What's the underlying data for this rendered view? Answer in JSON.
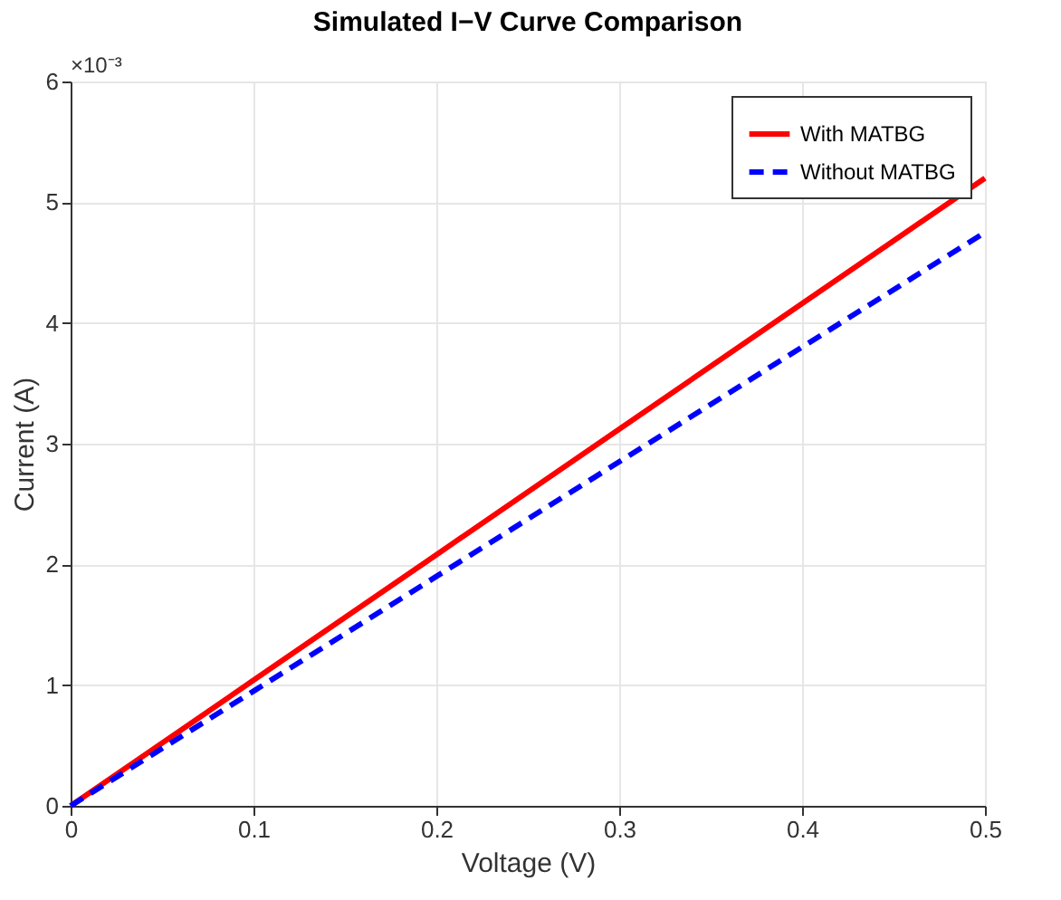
{
  "chart_data": {
    "type": "line",
    "title": "Simulated I−V Curve Comparison",
    "xlabel": "Voltage (V)",
    "ylabel": "Current (A)",
    "x": [
      0,
      0.1,
      0.2,
      0.3,
      0.4,
      0.5
    ],
    "series": [
      {
        "name": "With MATBG",
        "color": "#ff0000",
        "line_style": "solid",
        "values": [
          0,
          1.04,
          2.08,
          3.12,
          4.16,
          5.2
        ]
      },
      {
        "name": "Without MATBG",
        "color": "#0000ff",
        "line_style": "dashed",
        "values": [
          0,
          0.95,
          1.9,
          2.85,
          3.8,
          4.75
        ]
      }
    ],
    "xlim": [
      0,
      0.5
    ],
    "xticks": [
      0,
      0.1,
      0.2,
      0.3,
      0.4,
      0.5
    ],
    "ylim": [
      0,
      6
    ],
    "yticks": [
      0,
      1,
      2,
      3,
      4,
      5,
      6
    ],
    "annotations": [
      "×10⁻³"
    ],
    "grid": true,
    "legend": "top right",
    "marker": "none"
  }
}
